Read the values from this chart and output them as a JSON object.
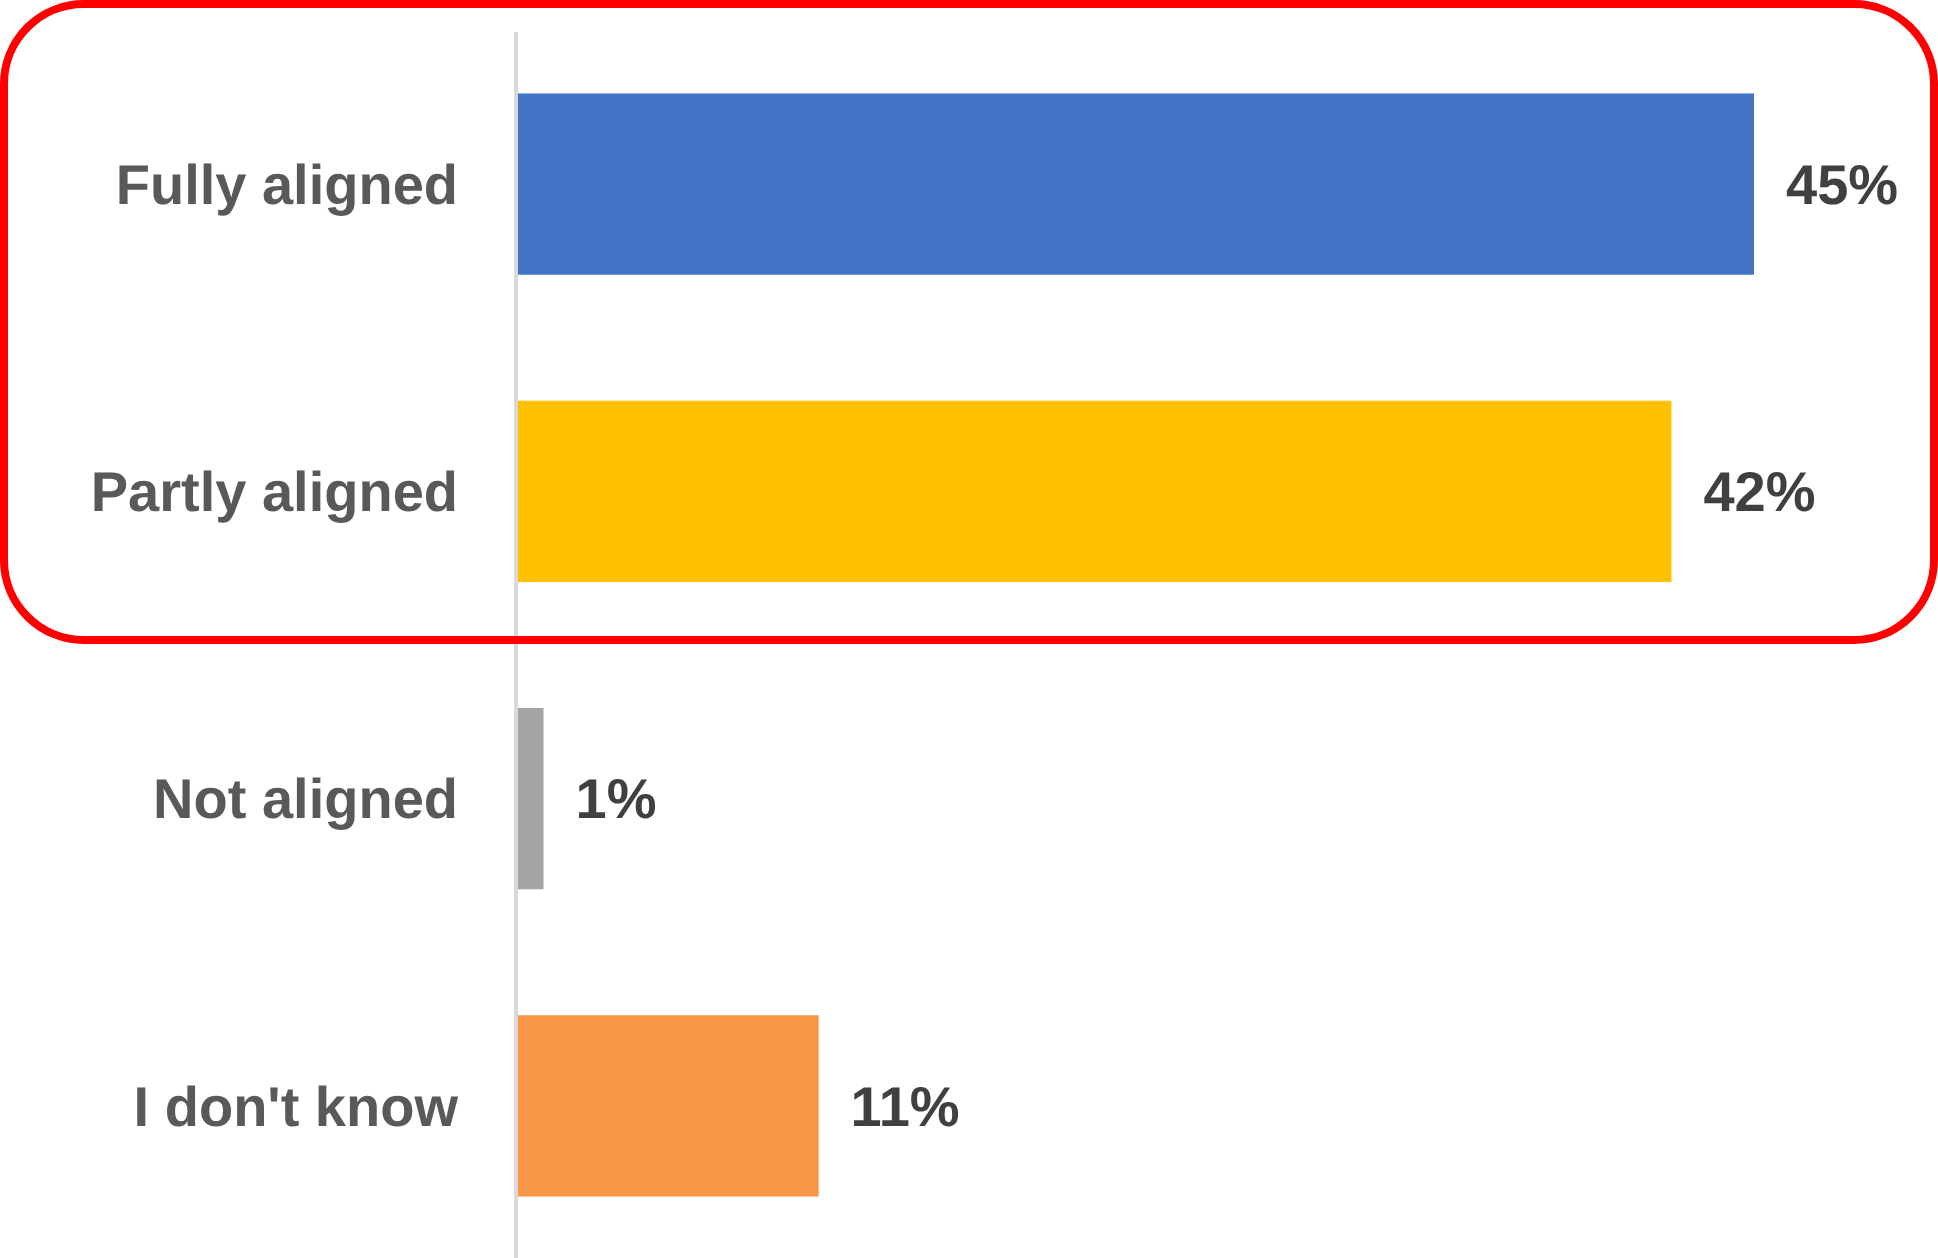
{
  "chart_data": {
    "type": "bar",
    "orientation": "horizontal",
    "categories": [
      "Fully aligned",
      "Partly aligned",
      "Not aligned",
      "I don't know"
    ],
    "values": [
      45,
      42,
      1,
      11
    ],
    "colors": [
      "#4472c4",
      "#ffc000",
      "#a5a5a5",
      "#f79646"
    ],
    "data_labels": true,
    "value_labels": [
      "45%",
      "42%",
      "1%",
      "11%"
    ]
  }
}
